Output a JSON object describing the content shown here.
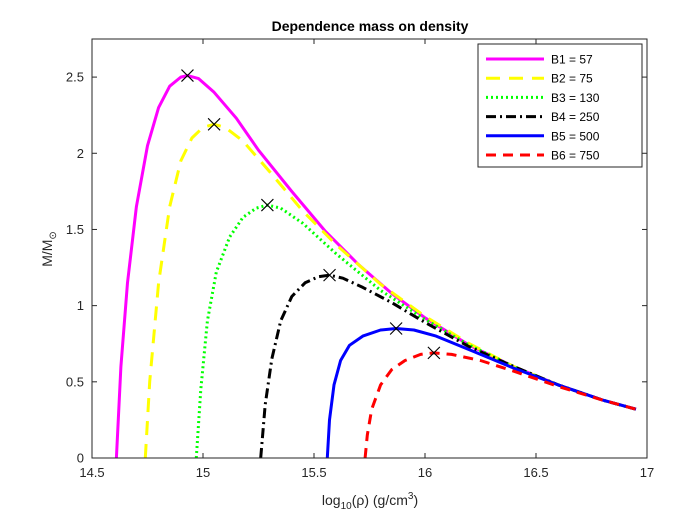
{
  "chart_data": {
    "type": "line",
    "title": "Dependence mass on density",
    "xlabel": {
      "prefix": "log",
      "sub": "10",
      "mid": "(ρ) (g/cm",
      "sup": "3",
      "suffix": ")"
    },
    "ylabel": {
      "main": "M/M",
      "sub": "⊙"
    },
    "xlim": [
      14.5,
      17
    ],
    "ylim": [
      0,
      2.75
    ],
    "xticks": [
      14.5,
      15,
      15.5,
      16,
      16.5,
      17
    ],
    "xtick_labels": [
      "14.5",
      "15",
      "15.5",
      "16",
      "16.5",
      "17"
    ],
    "yticks": [
      0,
      0.5,
      1,
      1.5,
      2,
      2.5
    ],
    "ytick_labels": [
      "0",
      "0.5",
      "1",
      "1.5",
      "2",
      "2.5"
    ],
    "legend_position": "top-right",
    "series": [
      {
        "name": "B1 = 57",
        "color": "#ff00ff",
        "dash": "solid",
        "x": [
          14.61,
          14.63,
          14.66,
          14.7,
          14.75,
          14.8,
          14.85,
          14.9,
          14.93,
          14.98,
          15.05,
          15.15,
          15.25,
          15.4,
          15.55,
          15.7,
          15.85,
          16.0,
          16.2,
          16.4,
          16.6,
          16.8,
          16.95
        ],
        "y": [
          0,
          0.6,
          1.15,
          1.65,
          2.05,
          2.3,
          2.44,
          2.5,
          2.51,
          2.49,
          2.4,
          2.23,
          2.02,
          1.75,
          1.49,
          1.27,
          1.08,
          0.92,
          0.74,
          0.6,
          0.48,
          0.38,
          0.32
        ]
      },
      {
        "name": "B2 = 75",
        "color": "#ffff00",
        "dash": "long-dash",
        "x": [
          14.74,
          14.76,
          14.8,
          14.85,
          14.9,
          14.95,
          15.0,
          15.05,
          15.1,
          15.18,
          15.3,
          15.45,
          15.6,
          15.8,
          16.0,
          16.2,
          16.4,
          16.6,
          16.8,
          16.95
        ],
        "y": [
          0,
          0.5,
          1.15,
          1.65,
          1.95,
          2.1,
          2.17,
          2.19,
          2.17,
          2.08,
          1.88,
          1.62,
          1.4,
          1.14,
          0.93,
          0.75,
          0.6,
          0.48,
          0.38,
          0.32
        ]
      },
      {
        "name": "B3 = 130",
        "color": "#00ff00",
        "dash": "dotted",
        "x": [
          14.97,
          14.99,
          15.02,
          15.06,
          15.12,
          15.18,
          15.24,
          15.29,
          15.35,
          15.45,
          15.6,
          15.8,
          16.0,
          16.2,
          16.4,
          16.6,
          16.8,
          16.95
        ],
        "y": [
          0,
          0.45,
          0.9,
          1.22,
          1.45,
          1.58,
          1.64,
          1.66,
          1.64,
          1.54,
          1.34,
          1.1,
          0.91,
          0.74,
          0.6,
          0.48,
          0.38,
          0.32
        ]
      },
      {
        "name": "B4 = 250",
        "color": "#000000",
        "dash": "dash-dot",
        "x": [
          15.26,
          15.28,
          15.31,
          15.35,
          15.4,
          15.46,
          15.52,
          15.57,
          15.63,
          15.72,
          15.85,
          16.0,
          16.2,
          16.4,
          16.6,
          16.8,
          16.95
        ],
        "y": [
          0,
          0.35,
          0.65,
          0.9,
          1.06,
          1.15,
          1.19,
          1.2,
          1.18,
          1.12,
          1.02,
          0.89,
          0.73,
          0.6,
          0.48,
          0.38,
          0.32
        ]
      },
      {
        "name": "B5 = 500",
        "color": "#0000ff",
        "dash": "solid",
        "x": [
          15.56,
          15.57,
          15.59,
          15.62,
          15.66,
          15.72,
          15.8,
          15.87,
          15.95,
          16.05,
          16.2,
          16.4,
          16.6,
          16.8,
          16.95
        ],
        "y": [
          0,
          0.25,
          0.48,
          0.64,
          0.74,
          0.8,
          0.84,
          0.85,
          0.84,
          0.8,
          0.71,
          0.59,
          0.48,
          0.38,
          0.32
        ]
      },
      {
        "name": "B6 = 750",
        "color": "#ff0000",
        "dash": "dashed",
        "x": [
          15.73,
          15.74,
          15.76,
          15.8,
          15.85,
          15.91,
          15.98,
          16.04,
          16.12,
          16.25,
          16.4,
          16.6,
          16.8,
          16.95
        ],
        "y": [
          0,
          0.15,
          0.32,
          0.48,
          0.58,
          0.64,
          0.68,
          0.69,
          0.68,
          0.64,
          0.57,
          0.47,
          0.38,
          0.32
        ]
      }
    ],
    "markers": [
      {
        "x": 14.93,
        "y": 2.51
      },
      {
        "x": 15.05,
        "y": 2.19
      },
      {
        "x": 15.29,
        "y": 1.66
      },
      {
        "x": 15.57,
        "y": 1.2
      },
      {
        "x": 15.87,
        "y": 0.85
      },
      {
        "x": 16.04,
        "y": 0.69
      }
    ]
  }
}
